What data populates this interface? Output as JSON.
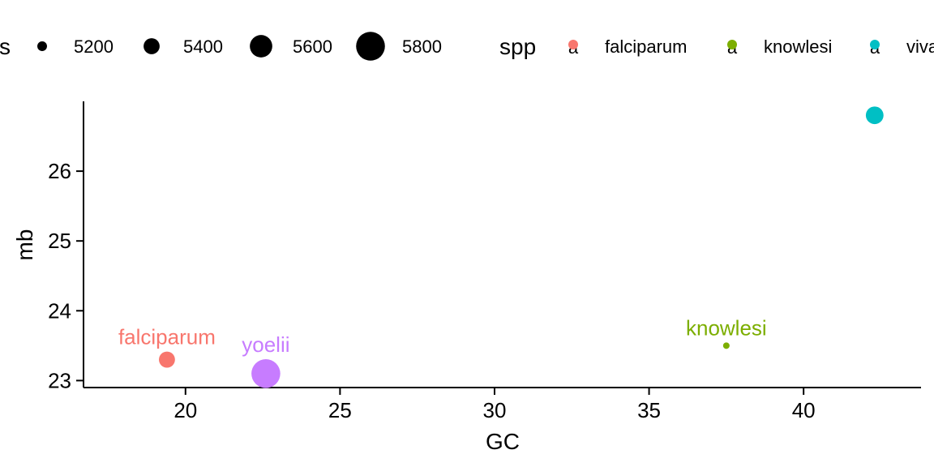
{
  "chart_data": {
    "type": "scatter",
    "xlabel": "GC",
    "ylabel": "mb",
    "xlim": [
      16.7,
      43.8
    ],
    "ylim": [
      22.9,
      27.0
    ],
    "x_ticks": [
      20,
      25,
      30,
      35,
      40
    ],
    "y_ticks": [
      23,
      24,
      25,
      26
    ],
    "points": [
      {
        "label": "falciparum",
        "spp": "falciparum",
        "x": 19.4,
        "y": 23.3,
        "size": 5400
      },
      {
        "label": "yoelii",
        "spp": "yoelii",
        "x": 22.6,
        "y": 23.1,
        "size": 5800
      },
      {
        "label": "knowlesi",
        "spp": "knowlesi",
        "x": 37.5,
        "y": 23.5,
        "size": 5100
      },
      {
        "label": "vivax",
        "spp": "vivax",
        "x": 42.3,
        "y": 26.8,
        "size": 5450
      }
    ],
    "legend": {
      "position": "top",
      "size": {
        "title": "genes",
        "entries": [
          {
            "label": "5200",
            "value": 5200
          },
          {
            "label": "5400",
            "value": 5400
          },
          {
            "label": "5600",
            "value": 5600
          },
          {
            "label": "5800",
            "value": 5800
          }
        ]
      },
      "color": {
        "title": "spp",
        "glyph": "a",
        "entries": [
          {
            "label": "falciparum",
            "color": "#F8766D"
          },
          {
            "label": "knowlesi",
            "color": "#7CAE00"
          },
          {
            "label": "vivax",
            "color": "#00BFC4"
          }
        ]
      }
    },
    "colors": {
      "falciparum": "#F8766D",
      "knowlesi": "#7CAE00",
      "vivax": "#00BFC4",
      "yoelii": "#C77CFF"
    },
    "grid": false
  }
}
